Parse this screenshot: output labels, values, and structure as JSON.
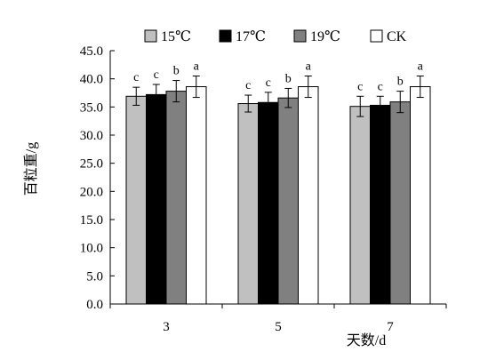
{
  "chart_data": {
    "type": "bar",
    "title": "",
    "xlabel": "天数/d",
    "ylabel": "百粒重/g",
    "ylim": [
      0,
      45
    ],
    "yticks": [
      "0.0",
      "5.0",
      "10.0",
      "15.0",
      "20.0",
      "25.0",
      "30.0",
      "35.0",
      "40.0",
      "45.0"
    ],
    "grid": false,
    "legend_position": "top",
    "categories": [
      "3",
      "5",
      "7"
    ],
    "series": [
      {
        "name": "15℃",
        "color": "#c0c0c0",
        "values": [
          36.9,
          35.6,
          35.1
        ],
        "errors": [
          1.6,
          1.5,
          1.8
        ],
        "labels": [
          "c",
          "c",
          "c"
        ]
      },
      {
        "name": "17℃",
        "color": "#000000",
        "values": [
          37.2,
          35.8,
          35.3
        ],
        "errors": [
          1.8,
          1.8,
          1.6
        ],
        "labels": [
          "c",
          "c",
          "c"
        ]
      },
      {
        "name": "19℃",
        "color": "#808080",
        "values": [
          37.8,
          36.6,
          35.9
        ],
        "errors": [
          1.9,
          1.7,
          1.9
        ],
        "labels": [
          "b",
          "b",
          "b"
        ]
      },
      {
        "name": "CK",
        "color": "#ffffff",
        "values": [
          38.6,
          38.6,
          38.6
        ],
        "errors": [
          1.9,
          1.9,
          1.9
        ],
        "labels": [
          "a",
          "a",
          "a"
        ]
      }
    ]
  }
}
